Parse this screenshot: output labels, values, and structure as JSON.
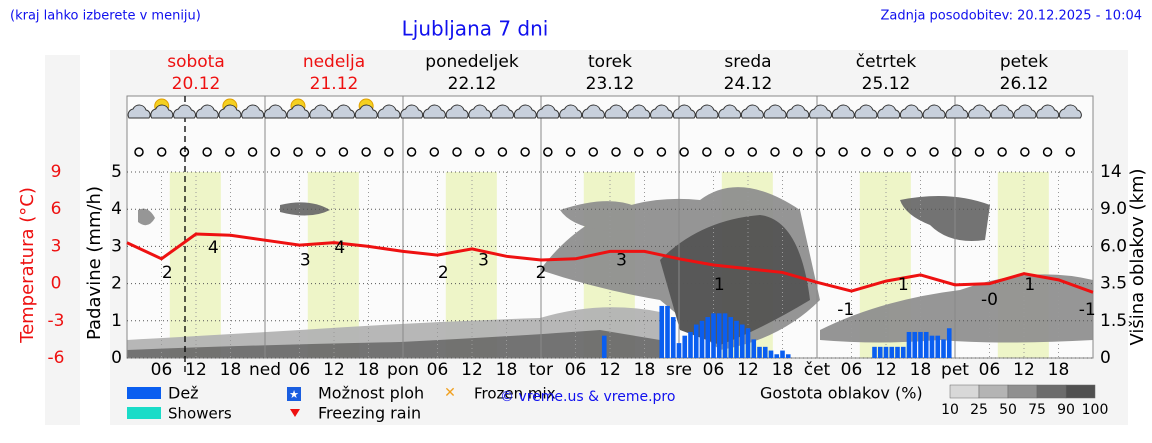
{
  "header": {
    "hint": "(kraj lahko izberete v meniju)",
    "title": "Ljubljana 7 dni",
    "updated": "Zadnja posodobitev: 20.12.2025 - 10:04"
  },
  "days": [
    {
      "name": "sobota",
      "date": "20.12",
      "weekend": true
    },
    {
      "name": "nedelja",
      "date": "21.12",
      "weekend": true
    },
    {
      "name": "ponedeljek",
      "date": "22.12",
      "weekend": false
    },
    {
      "name": "torek",
      "date": "23.12",
      "weekend": false
    },
    {
      "name": "sreda",
      "date": "24.12",
      "weekend": false
    },
    {
      "name": "četrtek",
      "date": "25.12",
      "weekend": false
    },
    {
      "name": "petek",
      "date": "26.12",
      "weekend": false
    }
  ],
  "chart_data": {
    "type": "meteogram",
    "xlim": [
      0,
      168
    ],
    "xticks": [
      {
        "value": 6,
        "label": "06"
      },
      {
        "value": 12,
        "label": "12"
      },
      {
        "value": 18,
        "label": "18"
      },
      {
        "value": 24,
        "label": "ned"
      },
      {
        "value": 30,
        "label": "06"
      },
      {
        "value": 36,
        "label": "12"
      },
      {
        "value": 42,
        "label": "18"
      },
      {
        "value": 48,
        "label": "pon"
      },
      {
        "value": 54,
        "label": "06"
      },
      {
        "value": 60,
        "label": "12"
      },
      {
        "value": 66,
        "label": "18"
      },
      {
        "value": 72,
        "label": "tor"
      },
      {
        "value": 78,
        "label": "06"
      },
      {
        "value": 84,
        "label": "12"
      },
      {
        "value": 90,
        "label": "18"
      },
      {
        "value": 96,
        "label": "sre"
      },
      {
        "value": 102,
        "label": "06"
      },
      {
        "value": 108,
        "label": "12"
      },
      {
        "value": 114,
        "label": "18"
      },
      {
        "value": 120,
        "label": "čet"
      },
      {
        "value": 126,
        "label": "06"
      },
      {
        "value": 132,
        "label": "12"
      },
      {
        "value": 138,
        "label": "18"
      },
      {
        "value": 144,
        "label": "pet"
      },
      {
        "value": 150,
        "label": "06"
      },
      {
        "value": 156,
        "label": "12"
      },
      {
        "value": 162,
        "label": "18"
      }
    ],
    "y_label": "Padavine (mm/h)",
    "ylim": [
      0,
      5
    ],
    "yticks": [
      0,
      1,
      2,
      3,
      4,
      5
    ],
    "y2_label": "Višina oblakov (km)",
    "y2lim": [
      0,
      14
    ],
    "y2ticks": [
      0,
      1.5,
      3.5,
      {
        "value": 6,
        "label": "6.0"
      },
      {
        "value": 9,
        "label": "9.0"
      },
      14
    ],
    "grid": true,
    "temperature": {
      "label": "Temperatura (°C)",
      "color": "#ee1111",
      "ylim": [
        -6,
        9
      ],
      "yticks": [
        9,
        6,
        3,
        0,
        -3,
        -6
      ],
      "x": [
        0,
        6,
        12,
        18,
        24,
        30,
        36,
        42,
        48,
        54,
        60,
        66,
        72,
        78,
        84,
        90,
        96,
        102,
        108,
        114,
        120,
        126,
        132,
        138,
        144,
        150,
        156,
        162,
        168
      ],
      "values": [
        3.3,
        2.0,
        4.0,
        3.9,
        3.5,
        3.1,
        3.3,
        3.0,
        2.6,
        2.3,
        2.8,
        2.2,
        1.9,
        2.0,
        2.6,
        2.6,
        2.0,
        1.5,
        1.2,
        0.9,
        0.1,
        -0.6,
        0.2,
        0.7,
        -0.1,
        0.0,
        0.8,
        0.3,
        -0.7
      ],
      "extremes": {
        "x": [
          7,
          15,
          31,
          37,
          55,
          62,
          72,
          86,
          103,
          125,
          135,
          150,
          157,
          167
        ],
        "values": [
          2,
          4,
          3,
          4,
          2,
          3,
          2,
          3,
          1,
          -1,
          1,
          -0.2,
          1,
          -1
        ],
        "value_labels": [
          "2",
          "4",
          "3",
          "4",
          "2",
          "3",
          "2",
          "3",
          "1",
          "-1",
          "1",
          "-0",
          "1",
          "-1"
        ]
      }
    },
    "series": [
      {
        "name": "Dež",
        "color": "#0a5ef0",
        "x": [
          83,
          93,
          94,
          95,
          96,
          97,
          98,
          99,
          100,
          101,
          102,
          103,
          104,
          105,
          106,
          107,
          108,
          109,
          110,
          111,
          112,
          113,
          114,
          115,
          130,
          131,
          132,
          133,
          134,
          135,
          136,
          137,
          138,
          139,
          140,
          141,
          142,
          143
        ],
        "values": [
          0.6,
          1.4,
          1.4,
          1.1,
          0.4,
          0.6,
          0.7,
          0.9,
          1.0,
          1.1,
          1.2,
          1.2,
          1.2,
          1.1,
          1.0,
          0.9,
          0.8,
          0.5,
          0.3,
          0.3,
          0.2,
          0.1,
          0.2,
          0.1,
          0.3,
          0.3,
          0.3,
          0.3,
          0.3,
          0.3,
          0.7,
          0.7,
          0.7,
          0.7,
          0.6,
          0.6,
          0.5,
          0.8
        ]
      }
    ],
    "other_symbols": [
      {
        "name": "Showers",
        "color": "#1adcc8"
      },
      {
        "name": "Možnost ploh",
        "color": "#1a5ee0"
      },
      {
        "name": "Frozen mix",
        "color": "#f0a020"
      },
      {
        "name": "Freezing rain",
        "color": "#ee1111"
      }
    ],
    "cloud_scale": {
      "title": "Gostota oblakov (%)",
      "ticks": [
        10,
        25,
        50,
        75,
        90,
        100
      ],
      "colors": [
        "#d8d8d8",
        "#b4b4b4",
        "#909090",
        "#6c6c6c",
        "#505050"
      ]
    },
    "credit": "© vreme.us & vreme.pro"
  }
}
